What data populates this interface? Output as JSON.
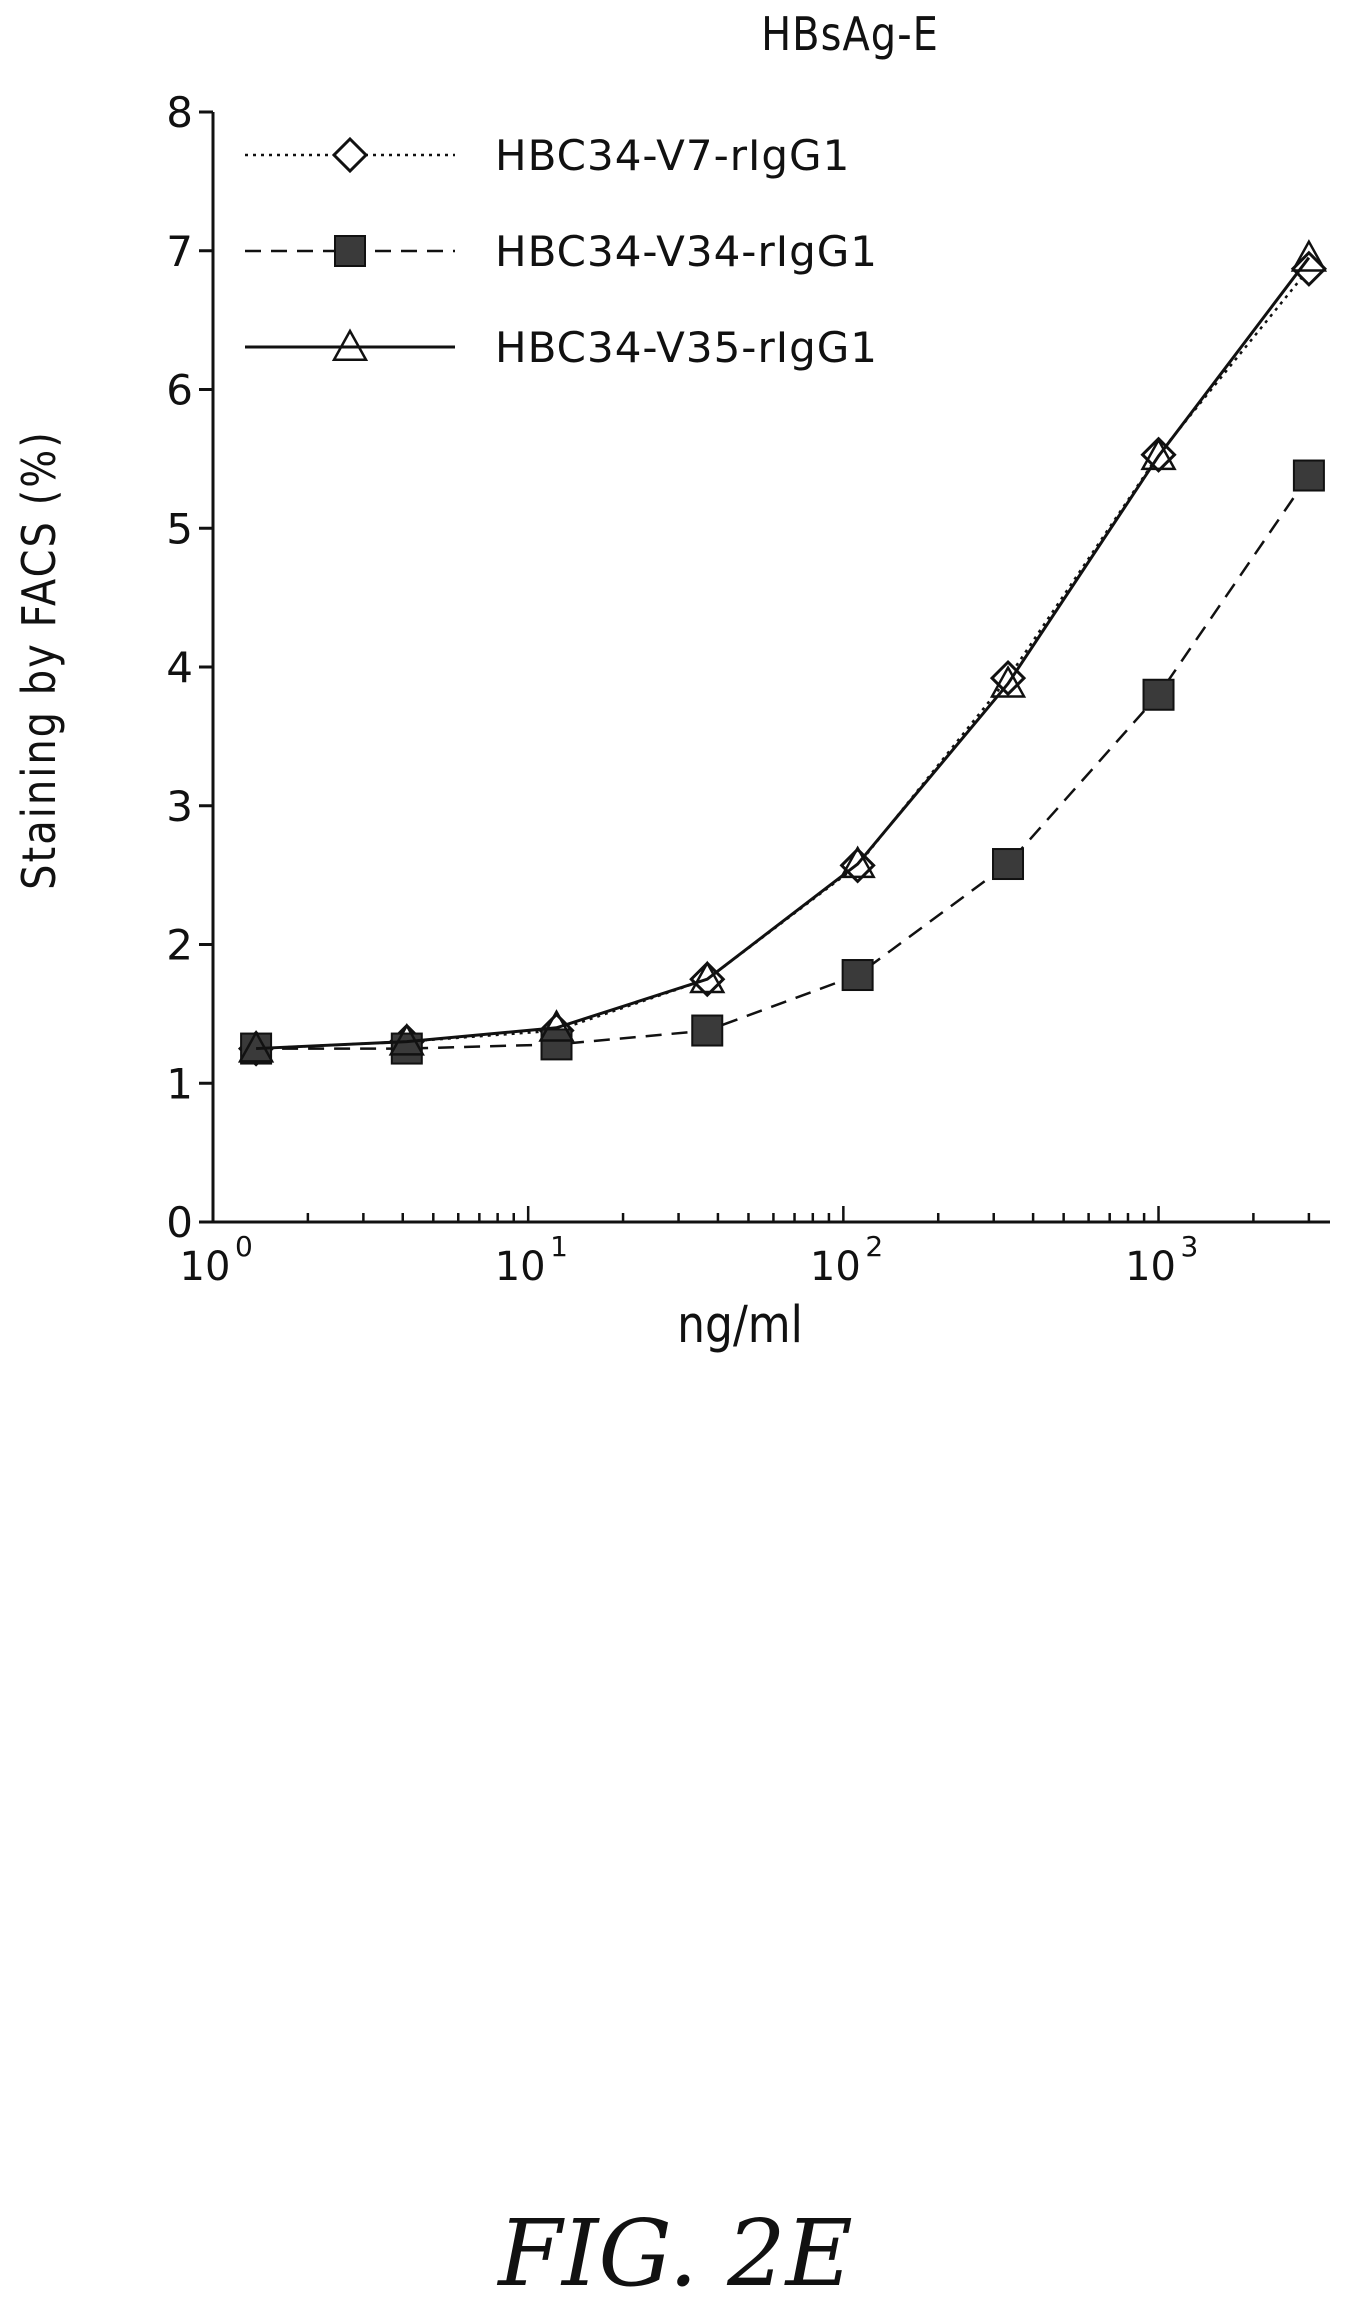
{
  "figure_label": "FIG. 2E",
  "chart_data": {
    "type": "line",
    "title": "HBsAg-E",
    "xlabel": "ng/ml",
    "ylabel": "Staining by FACS (%)",
    "x_scale": "log",
    "xlim": [
      1,
      3500
    ],
    "ylim": [
      0,
      8
    ],
    "x_ticks": [
      {
        "value": 1,
        "base": "10",
        "exp": "0"
      },
      {
        "value": 10,
        "base": "10",
        "exp": "1"
      },
      {
        "value": 100,
        "base": "10",
        "exp": "2"
      },
      {
        "value": 1000,
        "base": "10",
        "exp": "3"
      }
    ],
    "y_ticks": [
      "0",
      "1",
      "2",
      "3",
      "4",
      "5",
      "6",
      "7",
      "8"
    ],
    "grid": false,
    "legend_position": "top-left",
    "x": [
      1.37,
      4.12,
      12.3,
      37,
      111,
      333,
      1000,
      3000
    ],
    "series": [
      {
        "name": "HBC34-V7-rIgG1",
        "marker": "diamond",
        "line": "dotted",
        "values": [
          1.25,
          1.3,
          1.38,
          1.75,
          2.57,
          3.92,
          5.53,
          6.87
        ]
      },
      {
        "name": "HBC34-V34-rIgG1",
        "marker": "square",
        "line": "dashed",
        "values": [
          1.25,
          1.25,
          1.28,
          1.38,
          1.78,
          2.58,
          3.8,
          5.38
        ]
      },
      {
        "name": "HBC34-V35-rIgG1",
        "marker": "triangle",
        "line": "solid",
        "values": [
          1.25,
          1.3,
          1.4,
          1.75,
          2.58,
          3.88,
          5.52,
          6.95
        ]
      }
    ]
  }
}
